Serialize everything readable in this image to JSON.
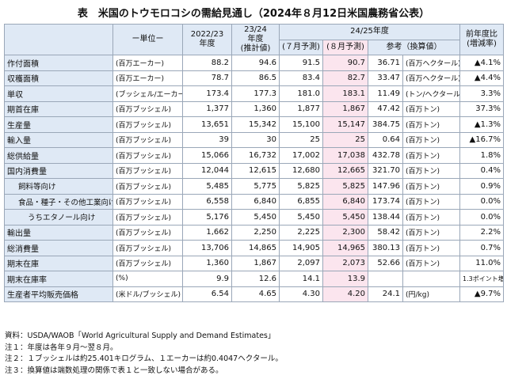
{
  "title": "表　米国のトウモロコシの需給見通し（2024年８月12日米国農務省公表）",
  "header": {
    "unit": "ー単位ー",
    "year1": [
      "2022/23",
      "年度"
    ],
    "year2": [
      "23/24",
      "年度",
      "(推計値)"
    ],
    "year3": "24/25年度",
    "july": "(７月予測)",
    "august": "(８月予測)",
    "reference": "参考（換算値）",
    "change": [
      "前年度比",
      "(増減率)"
    ]
  },
  "rows": [
    {
      "label": "作付面積",
      "unit": "(百万エーカー)",
      "cells": [
        "88.2",
        "94.6",
        "91.5",
        "90.7",
        "36.71",
        "(百万ヘクタール)",
        "▲4.1%"
      ]
    },
    {
      "label": "収穫面積",
      "unit": "(百万エーカー)",
      "cells": [
        "78.7",
        "86.5",
        "83.4",
        "82.7",
        "33.47",
        "(百万ヘクタール)",
        "▲4.4%"
      ]
    },
    {
      "label": "単収",
      "unit": "(ブッシェル/エーカー)",
      "cells": [
        "173.4",
        "177.3",
        "181.0",
        "183.1",
        "11.49",
        "(トン/ヘクタール)",
        "3.3%"
      ]
    },
    {
      "label": "期首在庫",
      "unit": "(百万ブッシェル)",
      "cells": [
        "1,377",
        "1,360",
        "1,877",
        "1,867",
        "47.42",
        "(百万トン)",
        "37.3%"
      ]
    },
    {
      "label": "生産量",
      "unit": "(百万ブッシェル)",
      "cells": [
        "13,651",
        "15,342",
        "15,100",
        "15,147",
        "384.75",
        "(百万トン)",
        "▲1.3%"
      ]
    },
    {
      "label": "輸入量",
      "unit": "(百万ブッシェル)",
      "cells": [
        "39",
        "30",
        "25",
        "25",
        "0.64",
        "(百万トン)",
        "▲16.7%"
      ]
    },
    {
      "label": "総供給量",
      "unit": "(百万ブッシェル)",
      "cells": [
        "15,066",
        "16,732",
        "17,002",
        "17,038",
        "432.78",
        "(百万トン)",
        "1.8%"
      ]
    },
    {
      "label": "国内消費量",
      "unit": "(百万ブッシェル)",
      "cells": [
        "12,044",
        "12,615",
        "12,680",
        "12,665",
        "321.70",
        "(百万トン)",
        "0.4%"
      ],
      "items": [
        {
          "label": "飼料等向け",
          "unit": "(百万ブッシェル)",
          "cells": [
            "5,485",
            "5,775",
            "5,825",
            "5,825",
            "147.96",
            "(百万トン)",
            "0.9%"
          ]
        },
        {
          "label": "食品・種子・その他工業向け",
          "unit": "(百万ブッシェル)",
          "cells": [
            "6,558",
            "6,840",
            "6,855",
            "6,840",
            "173.74",
            "(百万トン)",
            "0.0%"
          ],
          "items": [
            {
              "label": "うちエタノール向け",
              "unit": "(百万ブッシェル)",
              "cells": [
                "5,176",
                "5,450",
                "5,450",
                "5,450",
                "138.44",
                "(百万トン)",
                "0.0%"
              ]
            }
          ]
        }
      ]
    },
    {
      "label": "輸出量",
      "unit": "(百万ブッシェル)",
      "cells": [
        "1,662",
        "2,250",
        "2,225",
        "2,300",
        "58.42",
        "(百万トン)",
        "2.2%"
      ]
    },
    {
      "label": "総消費量",
      "unit": "(百万ブッシェル)",
      "cells": [
        "13,706",
        "14,865",
        "14,905",
        "14,965",
        "380.13",
        "(百万トン)",
        "0.7%"
      ]
    },
    {
      "label": "期末在庫",
      "unit": "(百万ブッシェル)",
      "cells": [
        "1,360",
        "1,867",
        "2,097",
        "2,073",
        "52.66",
        "(百万トン)",
        "11.0%"
      ]
    },
    {
      "label": "期末在庫率",
      "unit": "(%)",
      "cells": [
        "9.9",
        "12.6",
        "14.1",
        "13.9",
        null,
        null,
        "1.3ポイント増"
      ]
    },
    {
      "label": "生産者平均販売価格",
      "unit": "(米ドル/ブッシェル)",
      "cells": [
        "6.54",
        "4.65",
        "4.30",
        "4.20",
        "24.1",
        "(円/kg)",
        "▲9.7%"
      ]
    }
  ],
  "notes": [
    "資料：USDA/WAOB「World Agricultural Supply and Demand Estimates」",
    "注１：年度は各年９月～翌８月。",
    "注２：１ブッシェルは約25.401キログラム、１エーカーは約0.4047ヘクタール。",
    "注３：換算値は端数処理の関係で表１と一致しない場合がある。"
  ]
}
